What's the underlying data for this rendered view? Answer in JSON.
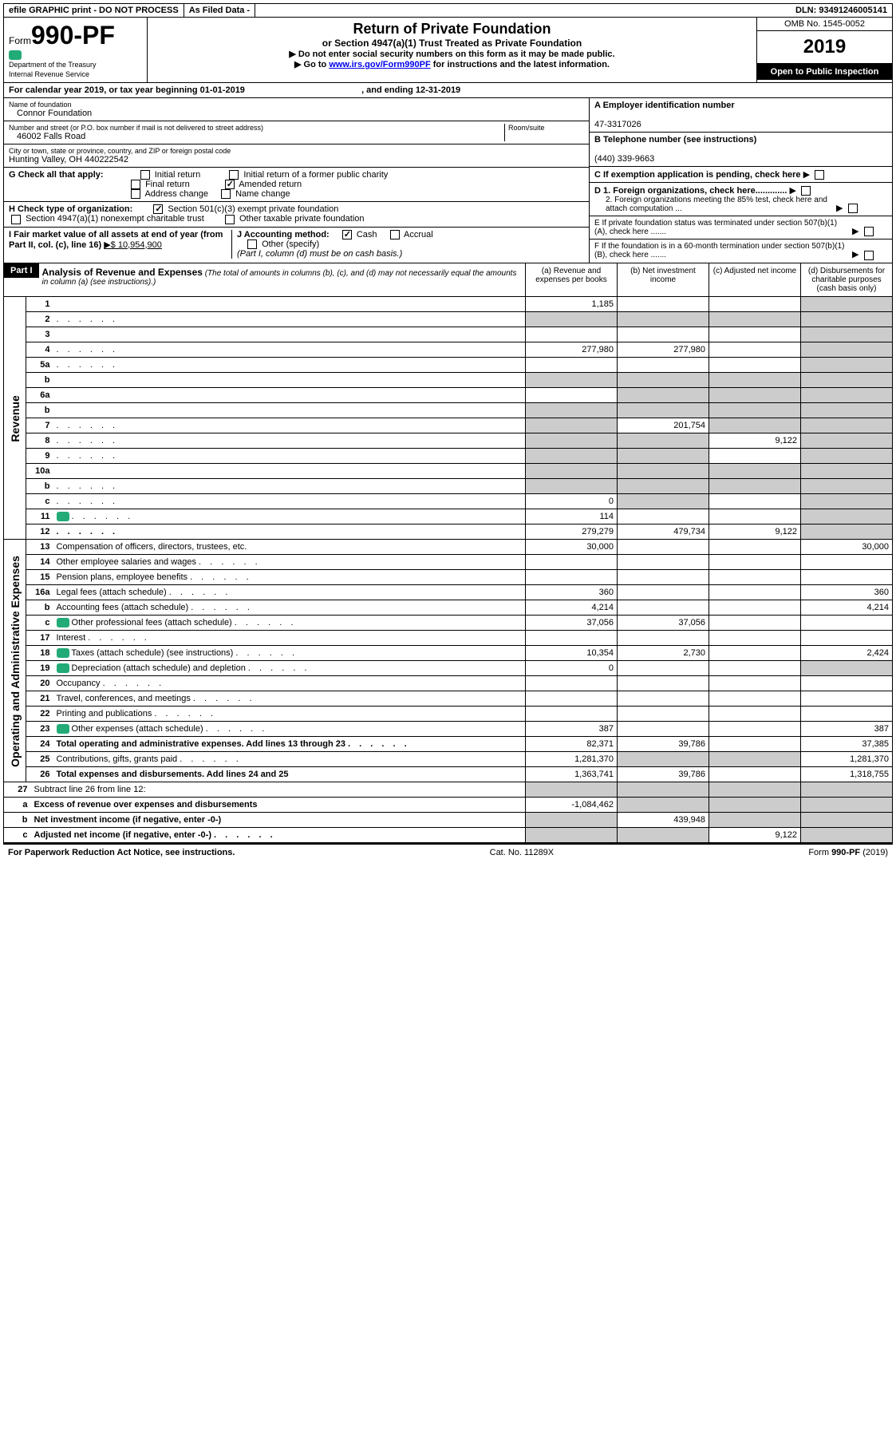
{
  "topbar": {
    "efile": "efile GRAPHIC print - DO NOT PROCESS",
    "asfiled": "As Filed Data -",
    "dln_label": "DLN:",
    "dln": "93491246005141"
  },
  "header": {
    "form_word": "Form",
    "form_no": "990-PF",
    "dept1": "Department of the Treasury",
    "dept2": "Internal Revenue Service",
    "title": "Return of Private Foundation",
    "subtitle": "or Section 4947(a)(1) Trust Treated as Private Foundation",
    "instr1": "▶ Do not enter social security numbers on this form as it may be made public.",
    "instr2_pre": "▶ Go to ",
    "instr2_link": "www.irs.gov/Form990PF",
    "instr2_post": " for instructions and the latest information.",
    "omb": "OMB No. 1545-0052",
    "year": "2019",
    "open": "Open to Public Inspection"
  },
  "yearline": {
    "pre": "For calendar year 2019, or tax year beginning ",
    "begin": "01-01-2019",
    "mid": ", and ending ",
    "end": "12-31-2019"
  },
  "info": {
    "name_label": "Name of foundation",
    "name": "Connor Foundation",
    "addr_label": "Number and street (or P.O. box number if mail is not delivered to street address)",
    "room_label": "Room/suite",
    "addr": "46002 Falls Road",
    "city_label": "City or town, state or province, country, and ZIP or foreign postal code",
    "city": "Hunting Valley, OH  440222542",
    "ein_label": "A Employer identification number",
    "ein": "47-3317026",
    "phone_label": "B Telephone number (see instructions)",
    "phone": "(440) 339-9663",
    "c": "C If exemption application is pending, check here",
    "d1": "D 1. Foreign organizations, check here.............",
    "d2": "2. Foreign organizations meeting the 85% test, check here and attach computation ...",
    "e": "E If private foundation status was terminated under section 507(b)(1)(A), check here .......",
    "f": "F If the foundation is in a 60-month termination under section 507(b)(1)(B), check here .......",
    "g_label": "G Check all that apply:",
    "g_initial": "Initial return",
    "g_initial_former": "Initial return of a former public charity",
    "g_final": "Final return",
    "g_amended": "Amended return",
    "g_addr": "Address change",
    "g_name": "Name change",
    "h_label": "H Check type of organization:",
    "h_501c3": "Section 501(c)(3) exempt private foundation",
    "h_4947": "Section 4947(a)(1) nonexempt charitable trust",
    "h_other": "Other taxable private foundation",
    "i_label": "I Fair market value of all assets at end of year (from Part II, col. (c), line 16)",
    "i_val": "▶$  10,954,900",
    "j_label": "J Accounting method:",
    "j_cash": "Cash",
    "j_accrual": "Accrual",
    "j_other": "Other (specify)",
    "j_note": "(Part I, column (d) must be on cash basis.)"
  },
  "part1": {
    "badge": "Part I",
    "title": "Analysis of Revenue and Expenses",
    "note": "(The total of amounts in columns (b), (c), and (d) may not necessarily equal the amounts in column (a) (see instructions).)",
    "col_a": "(a)   Revenue and expenses per books",
    "col_b": "(b)   Net investment income",
    "col_c": "(c)   Adjusted net income",
    "col_d": "(d)   Disbursements for charitable purposes (cash basis only)"
  },
  "side": {
    "revenue": "Revenue",
    "expenses": "Operating and Administrative Expenses"
  },
  "rows": [
    {
      "n": "1",
      "d": "",
      "a": "1,185",
      "b": "",
      "c": "",
      "shade_c": false,
      "shade_d": true
    },
    {
      "n": "2",
      "d": "",
      "dots": true,
      "a": "",
      "b": "",
      "c": "",
      "shade_all": true
    },
    {
      "n": "3",
      "d": "",
      "a": "",
      "b": "",
      "c": "",
      "shade_d": true
    },
    {
      "n": "4",
      "d": "",
      "dots": true,
      "a": "277,980",
      "b": "277,980",
      "c": "",
      "shade_d": true
    },
    {
      "n": "5a",
      "d": "",
      "dots": true,
      "a": "",
      "b": "",
      "c": "",
      "shade_d": true
    },
    {
      "n": "b",
      "d": "",
      "a": "",
      "b": "",
      "c": "",
      "shade_abcd": true
    },
    {
      "n": "6a",
      "d": "",
      "a": "",
      "b": "",
      "c": "",
      "shade_bcd": true
    },
    {
      "n": "b",
      "d": "",
      "a": "",
      "b": "",
      "c": "",
      "shade_abcd": true
    },
    {
      "n": "7",
      "d": "",
      "dots": true,
      "a": "",
      "b": "201,754",
      "c": "",
      "shade_a": true,
      "shade_cd": true
    },
    {
      "n": "8",
      "d": "",
      "dots": true,
      "a": "",
      "b": "",
      "c": "9,122",
      "shade_ab": true,
      "shade_d": true
    },
    {
      "n": "9",
      "d": "",
      "dots": true,
      "a": "",
      "b": "",
      "c": "",
      "shade_ab": true,
      "shade_d": true
    },
    {
      "n": "10a",
      "d": "",
      "a": "",
      "b": "",
      "c": "",
      "shade_abcd": true
    },
    {
      "n": "b",
      "d": "",
      "dots": true,
      "a": "",
      "b": "",
      "c": "",
      "shade_abcd": true
    },
    {
      "n": "c",
      "d": "",
      "dots": true,
      "a": "0",
      "b": "",
      "c": "",
      "shade_b": true,
      "shade_d": true
    },
    {
      "n": "11",
      "d": "",
      "dots": true,
      "icon": true,
      "a": "114",
      "b": "",
      "c": "",
      "shade_d": true
    },
    {
      "n": "12",
      "d": "",
      "dots": true,
      "bold": true,
      "a": "279,279",
      "b": "479,734",
      "c": "9,122",
      "shade_d": true
    }
  ],
  "expense_rows": [
    {
      "n": "13",
      "d": "Compensation of officers, directors, trustees, etc.",
      "a": "30,000",
      "b": "",
      "c": "",
      "dd": "30,000"
    },
    {
      "n": "14",
      "d": "Other employee salaries and wages",
      "dots": true,
      "a": "",
      "b": "",
      "c": "",
      "dd": ""
    },
    {
      "n": "15",
      "d": "Pension plans, employee benefits",
      "dots": true,
      "a": "",
      "b": "",
      "c": "",
      "dd": ""
    },
    {
      "n": "16a",
      "d": "Legal fees (attach schedule)",
      "dots": true,
      "a": "360",
      "b": "",
      "c": "",
      "dd": "360"
    },
    {
      "n": "b",
      "d": "Accounting fees (attach schedule)",
      "dots": true,
      "a": "4,214",
      "b": "",
      "c": "",
      "dd": "4,214"
    },
    {
      "n": "c",
      "d": "Other professional fees (attach schedule)",
      "dots": true,
      "icon": true,
      "a": "37,056",
      "b": "37,056",
      "c": "",
      "dd": ""
    },
    {
      "n": "17",
      "d": "Interest",
      "dots": true,
      "a": "",
      "b": "",
      "c": "",
      "dd": ""
    },
    {
      "n": "18",
      "d": "Taxes (attach schedule) (see instructions)",
      "dots": true,
      "icon": true,
      "a": "10,354",
      "b": "2,730",
      "c": "",
      "dd": "2,424"
    },
    {
      "n": "19",
      "d": "Depreciation (attach schedule) and depletion",
      "dots": true,
      "icon": true,
      "a": "0",
      "b": "",
      "c": "",
      "dd": "",
      "shade_d": true
    },
    {
      "n": "20",
      "d": "Occupancy",
      "dots": true,
      "a": "",
      "b": "",
      "c": "",
      "dd": ""
    },
    {
      "n": "21",
      "d": "Travel, conferences, and meetings",
      "dots": true,
      "a": "",
      "b": "",
      "c": "",
      "dd": ""
    },
    {
      "n": "22",
      "d": "Printing and publications",
      "dots": true,
      "a": "",
      "b": "",
      "c": "",
      "dd": ""
    },
    {
      "n": "23",
      "d": "Other expenses (attach schedule)",
      "dots": true,
      "icon": true,
      "a": "387",
      "b": "",
      "c": "",
      "dd": "387"
    },
    {
      "n": "24",
      "d": "Total operating and administrative expenses. Add lines 13 through 23",
      "dots": true,
      "bold": true,
      "a": "82,371",
      "b": "39,786",
      "c": "",
      "dd": "37,385"
    },
    {
      "n": "25",
      "d": "Contributions, gifts, grants paid",
      "dots": true,
      "a": "1,281,370",
      "b": "",
      "c": "",
      "dd": "1,281,370",
      "shade_bc": true
    },
    {
      "n": "26",
      "d": "Total expenses and disbursements. Add lines 24 and 25",
      "bold": true,
      "a": "1,363,741",
      "b": "39,786",
      "c": "",
      "dd": "1,318,755"
    }
  ],
  "bottom_rows": [
    {
      "n": "27",
      "d": "Subtract line 26 from line 12:",
      "a": "",
      "b": "",
      "c": "",
      "dd": "",
      "shade_all": true
    },
    {
      "n": "a",
      "d": "Excess of revenue over expenses and disbursements",
      "bold": true,
      "a": "-1,084,462",
      "b": "",
      "c": "",
      "dd": "",
      "shade_bcd": true
    },
    {
      "n": "b",
      "d": "Net investment income (if negative, enter -0-)",
      "bold": true,
      "a": "",
      "b": "439,948",
      "c": "",
      "dd": "",
      "shade_a": true,
      "shade_cd": true
    },
    {
      "n": "c",
      "d": "Adjusted net income (if negative, enter -0-)",
      "dots": true,
      "bold": true,
      "a": "",
      "b": "",
      "c": "9,122",
      "dd": "",
      "shade_ab": true,
      "shade_d": true
    }
  ],
  "footer": {
    "left": "For Paperwork Reduction Act Notice, see instructions.",
    "center": "Cat. No. 11289X",
    "right": "Form 990-PF (2019)"
  },
  "colors": {
    "shade": "#cccccc",
    "black": "#000000",
    "link": "#0000ee"
  }
}
